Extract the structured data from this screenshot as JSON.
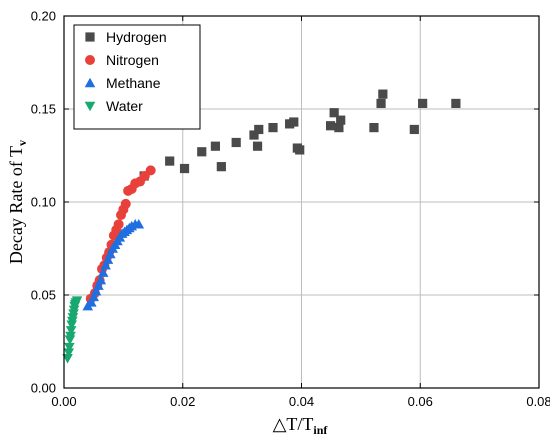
{
  "chart_data": {
    "type": "scatter",
    "xlabel": "△T/T",
    "xlabel_sub": "inf",
    "ylabel": "Decay Rate of  T",
    "ylabel_sub": "v",
    "xlim": [
      0,
      0.08
    ],
    "ylim": [
      0,
      0.2
    ],
    "xticks": [
      0.0,
      0.02,
      0.04,
      0.06,
      0.08
    ],
    "xtick_labels": [
      "0.00",
      "0.02",
      "0.04",
      "0.06",
      "0.08"
    ],
    "yticks": [
      0.0,
      0.05,
      0.1,
      0.15,
      0.2
    ],
    "ytick_labels": [
      "0.00",
      "0.05",
      "0.10",
      "0.15",
      "0.20"
    ],
    "grid": true,
    "legend_position": "top-left",
    "series": [
      {
        "name": "Hydrogen",
        "marker": "square",
        "color": "#4a4a4a",
        "points": [
          [
            0.0135,
            0.114
          ],
          [
            0.0178,
            0.122
          ],
          [
            0.0203,
            0.118
          ],
          [
            0.0232,
            0.127
          ],
          [
            0.0255,
            0.13
          ],
          [
            0.0265,
            0.119
          ],
          [
            0.029,
            0.132
          ],
          [
            0.032,
            0.136
          ],
          [
            0.0326,
            0.13
          ],
          [
            0.0328,
            0.139
          ],
          [
            0.0352,
            0.14
          ],
          [
            0.038,
            0.142
          ],
          [
            0.0387,
            0.143
          ],
          [
            0.0393,
            0.129
          ],
          [
            0.0397,
            0.128
          ],
          [
            0.0449,
            0.141
          ],
          [
            0.0455,
            0.148
          ],
          [
            0.0463,
            0.14
          ],
          [
            0.0466,
            0.144
          ],
          [
            0.0522,
            0.14
          ],
          [
            0.0534,
            0.153
          ],
          [
            0.0537,
            0.158
          ],
          [
            0.059,
            0.139
          ],
          [
            0.0604,
            0.153
          ],
          [
            0.066,
            0.153
          ]
        ]
      },
      {
        "name": "Nitrogen",
        "color": "#e8403a",
        "marker": "circle",
        "points": [
          [
            0.0045,
            0.048
          ],
          [
            0.0052,
            0.051
          ],
          [
            0.0056,
            0.055
          ],
          [
            0.006,
            0.058
          ],
          [
            0.0064,
            0.064
          ],
          [
            0.0068,
            0.066
          ],
          [
            0.0072,
            0.07
          ],
          [
            0.0076,
            0.073
          ],
          [
            0.008,
            0.077
          ],
          [
            0.0084,
            0.082
          ],
          [
            0.0088,
            0.085
          ],
          [
            0.0092,
            0.088
          ],
          [
            0.0096,
            0.093
          ],
          [
            0.01,
            0.096
          ],
          [
            0.0104,
            0.099
          ],
          [
            0.0108,
            0.106
          ],
          [
            0.0114,
            0.107
          ],
          [
            0.012,
            0.11
          ],
          [
            0.0128,
            0.111
          ],
          [
            0.0136,
            0.114
          ],
          [
            0.0146,
            0.117
          ]
        ]
      },
      {
        "name": "Methane",
        "color": "#1f6fe0",
        "marker": "triangle-up",
        "points": [
          [
            0.004,
            0.044
          ],
          [
            0.0046,
            0.046
          ],
          [
            0.005,
            0.049
          ],
          [
            0.0054,
            0.052
          ],
          [
            0.0058,
            0.055
          ],
          [
            0.0062,
            0.058
          ],
          [
            0.0066,
            0.062
          ],
          [
            0.007,
            0.066
          ],
          [
            0.0074,
            0.069
          ],
          [
            0.0078,
            0.072
          ],
          [
            0.0082,
            0.075
          ],
          [
            0.0086,
            0.077
          ],
          [
            0.009,
            0.079
          ],
          [
            0.0094,
            0.081
          ],
          [
            0.0098,
            0.083
          ],
          [
            0.0102,
            0.084
          ],
          [
            0.0106,
            0.085
          ],
          [
            0.011,
            0.086
          ],
          [
            0.0114,
            0.087
          ],
          [
            0.012,
            0.088
          ],
          [
            0.0126,
            0.088
          ]
        ]
      },
      {
        "name": "Water",
        "color": "#18a870",
        "marker": "triangle-down",
        "points": [
          [
            0.0006,
            0.016
          ],
          [
            0.0008,
            0.019
          ],
          [
            0.0009,
            0.022
          ],
          [
            0.001,
            0.026
          ],
          [
            0.0011,
            0.028
          ],
          [
            0.0012,
            0.031
          ],
          [
            0.0013,
            0.034
          ],
          [
            0.0014,
            0.036
          ],
          [
            0.0015,
            0.038
          ],
          [
            0.0016,
            0.04
          ],
          [
            0.0017,
            0.042
          ],
          [
            0.0018,
            0.044
          ],
          [
            0.0019,
            0.045
          ],
          [
            0.002,
            0.046
          ],
          [
            0.0022,
            0.047
          ]
        ]
      }
    ]
  }
}
